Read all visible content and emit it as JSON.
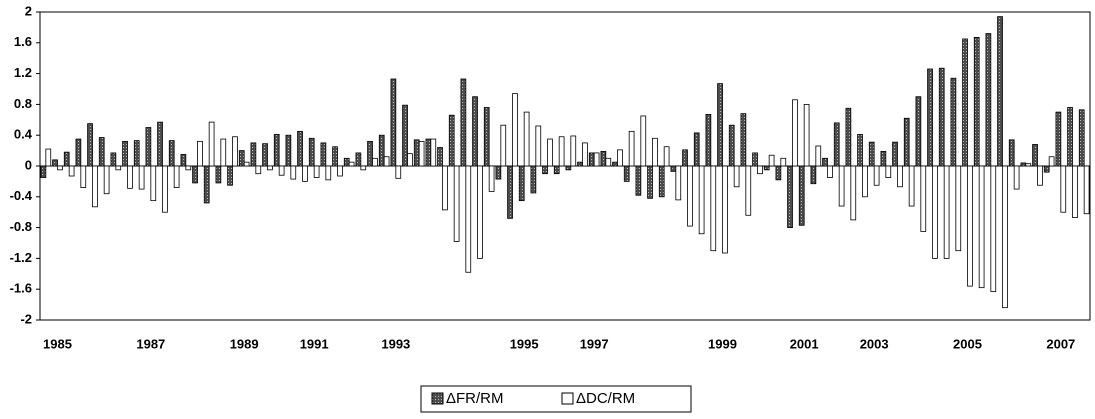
{
  "chart_data": {
    "type": "bar",
    "categories": [
      null,
      "1985",
      null,
      null,
      null,
      null,
      null,
      null,
      null,
      "1987",
      null,
      null,
      null,
      null,
      null,
      null,
      null,
      "1989",
      null,
      null,
      null,
      null,
      null,
      "1991",
      null,
      null,
      null,
      null,
      null,
      null,
      "1993",
      null,
      null,
      null,
      null,
      null,
      null,
      null,
      null,
      null,
      null,
      "1995",
      null,
      null,
      null,
      null,
      null,
      "1997",
      null,
      null,
      null,
      null,
      null,
      null,
      null,
      null,
      null,
      null,
      "1999",
      null,
      null,
      null,
      null,
      null,
      null,
      "2001",
      null,
      null,
      null,
      null,
      null,
      "2003",
      null,
      null,
      null,
      null,
      null,
      null,
      null,
      "2005",
      null,
      null,
      null,
      null,
      null,
      null,
      null,
      "2007",
      null,
      null
    ],
    "series": [
      {
        "name": "ΔFR/RM",
        "color": "#4d4d4d",
        "values": [
          -0.15,
          0.08,
          0.18,
          0.35,
          0.55,
          0.37,
          0.17,
          0.32,
          0.33,
          0.5,
          0.57,
          0.33,
          0.15,
          -0.22,
          -0.48,
          -0.22,
          -0.25,
          0.2,
          0.3,
          0.29,
          0.41,
          0.4,
          0.45,
          0.36,
          0.3,
          0.25,
          0.1,
          0.17,
          0.32,
          0.4,
          1.13,
          0.79,
          0.34,
          0.35,
          0.24,
          0.66,
          1.13,
          0.9,
          0.76,
          -0.17,
          -0.68,
          -0.45,
          -0.35,
          -0.1,
          -0.1,
          -0.05,
          0.05,
          0.17,
          0.19,
          0.05,
          -0.2,
          -0.38,
          -0.42,
          -0.4,
          -0.07,
          0.21,
          0.43,
          0.67,
          1.07,
          0.53,
          0.68,
          0.17,
          -0.05,
          -0.18,
          -0.8,
          -0.77,
          -0.23,
          0.1,
          0.56,
          0.75,
          0.41,
          0.31,
          0.19,
          0.31,
          0.62,
          0.9,
          1.26,
          1.27,
          1.14,
          1.65,
          1.67,
          1.72,
          1.94,
          0.34,
          0.04,
          0.28,
          -0.08,
          0.7,
          0.76,
          0.73
        ]
      },
      {
        "name": "ΔDC/RM",
        "color": "#ffffff",
        "values": [
          0.22,
          -0.05,
          -0.13,
          -0.28,
          -0.53,
          -0.36,
          -0.05,
          -0.29,
          -0.3,
          -0.45,
          -0.6,
          -0.28,
          -0.05,
          0.32,
          0.57,
          0.35,
          0.38,
          0.05,
          -0.1,
          -0.05,
          -0.12,
          -0.17,
          -0.2,
          -0.15,
          -0.18,
          -0.13,
          0.05,
          -0.05,
          0.1,
          0.12,
          -0.16,
          0.16,
          0.32,
          0.35,
          -0.57,
          -0.98,
          -1.38,
          -1.2,
          -0.33,
          0.53,
          0.94,
          0.7,
          0.52,
          0.35,
          0.38,
          0.39,
          0.3,
          0.17,
          0.1,
          0.21,
          0.45,
          0.65,
          0.36,
          0.25,
          -0.44,
          -0.78,
          -0.88,
          -1.1,
          -1.13,
          -0.27,
          -0.64,
          -0.1,
          0.14,
          0.1,
          0.86,
          0.8,
          0.26,
          -0.15,
          -0.52,
          -0.7,
          -0.4,
          -0.25,
          -0.15,
          -0.27,
          -0.52,
          -0.85,
          -1.2,
          -1.2,
          -1.1,
          -1.56,
          -1.58,
          -1.63,
          -1.84,
          -0.3,
          0.03,
          -0.25,
          0.12,
          -0.6,
          -0.67,
          -0.62
        ]
      }
    ],
    "ylim": [
      -2,
      2
    ],
    "yticks": [
      -2,
      -1.6,
      -1.2,
      -0.8,
      -0.4,
      0,
      0.4,
      0.8,
      1.2,
      1.6,
      2
    ],
    "grid": false
  }
}
